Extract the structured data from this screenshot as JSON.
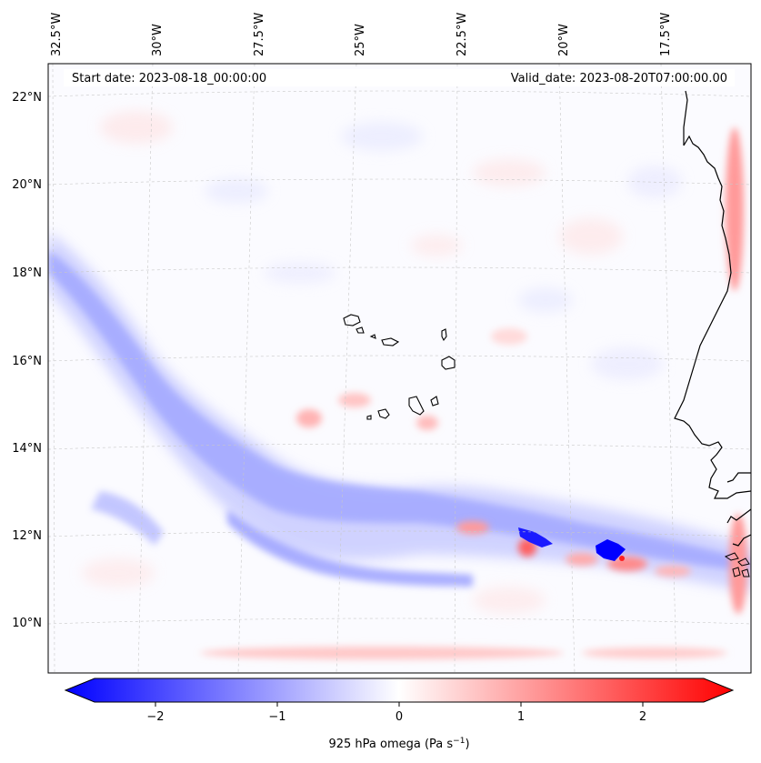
{
  "header": {
    "start_date": "Start date: 2023-08-18_00:00:00",
    "valid_date": "Valid_date: 2023-08-20T07:00:00.00"
  },
  "longitude_labels": [
    "32.5°W",
    "30°W",
    "27.5°W",
    "25°W",
    "22.5°W",
    "20°W",
    "17.5°W"
  ],
  "latitude_labels": [
    "22°N",
    "20°N",
    "18°N",
    "16°N",
    "14°N",
    "12°N",
    "10°N"
  ],
  "colorbar": {
    "tick_labels": [
      "−2",
      "−1",
      "0",
      "1",
      "2"
    ],
    "label": "925 hPa omega (Pa s",
    "label_exp": "−1",
    "label_close": ")",
    "colors": {
      "negative": "#0000ff",
      "zero": "#ffffff",
      "positive": "#ff0000"
    }
  },
  "chart_data": {
    "type": "heatmap",
    "variable": "925 hPa omega",
    "units": "Pa s−1",
    "colormap": "bwr",
    "vmin": -2.7,
    "vmax": 2.7,
    "lon_range": [
      -33,
      -15.8
    ],
    "lat_range": [
      9,
      22.8
    ],
    "gridlines": true,
    "ticks": [
      -2,
      -1,
      0,
      1,
      2
    ]
  }
}
